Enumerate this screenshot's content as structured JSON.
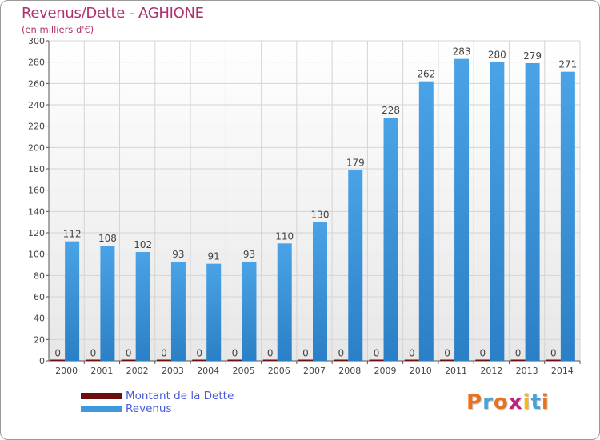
{
  "chart_data": {
    "type": "bar",
    "title": "Revenus/Dette - AGHIONE",
    "subtitle": "(en milliers d'€)",
    "categories": [
      "2000",
      "2001",
      "2002",
      "2003",
      "2004",
      "2005",
      "2006",
      "2007",
      "2008",
      "2009",
      "2010",
      "2011",
      "2012",
      "2013",
      "2014"
    ],
    "series": [
      {
        "name": "Montant de la Dette",
        "color": "#6b0f0f",
        "values": [
          0,
          0,
          0,
          0,
          0,
          0,
          0,
          0,
          0,
          0,
          0,
          0,
          0,
          0,
          0
        ]
      },
      {
        "name": "Revenus",
        "color": "#3f97dc",
        "values": [
          112,
          108,
          102,
          93,
          91,
          93,
          110,
          130,
          179,
          228,
          262,
          283,
          280,
          279,
          271
        ]
      }
    ],
    "ylim": [
      0,
      300
    ],
    "yticks": [
      0,
      20,
      40,
      60,
      80,
      100,
      120,
      140,
      160,
      180,
      200,
      220,
      240,
      260,
      280,
      300
    ],
    "grid": true,
    "legend": "bottom-left"
  },
  "logo": {
    "text": "Proxiti",
    "colors": [
      "#e8731c",
      "#46a2da",
      "#e8731c",
      "#c2207e",
      "#f2b81c",
      "#46a2da",
      "#e8731c"
    ]
  }
}
